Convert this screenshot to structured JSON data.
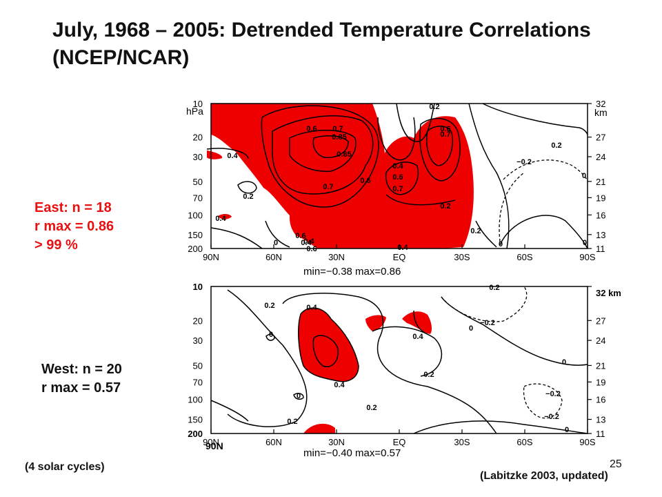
{
  "title": "July, 1968 – 2005: Detrended Temperature Correlations (NCEP/NCAR)",
  "annotations": {
    "east": [
      "East: n = 18",
      "r max = 0.86",
      "> 99 %"
    ],
    "west": [
      "West: n = 20",
      "r max = 0.57"
    ],
    "solar_cycles": "(4 solar cycles)",
    "citation": "(Labitzke  2003, updated)",
    "page_number": "25"
  },
  "colors": {
    "significant_fill": "#ee0000",
    "contour": "#000000",
    "east_text": "#e81010"
  },
  "chart_data": [
    {
      "type": "contour",
      "name": "East",
      "x_ticks": [
        "90N",
        "60N",
        "30N",
        "EQ",
        "30S",
        "60S",
        "90S"
      ],
      "y_left_ticks": [
        "10",
        "20",
        "30",
        "50",
        "70",
        "100",
        "150",
        "200"
      ],
      "y_left_unit": "hPa",
      "y_right_ticks": [
        "32",
        "27",
        "24",
        "21",
        "19",
        "16",
        "13",
        "11"
      ],
      "y_right_unit": "km",
      "min_max_label": "min=−0.38  max=0.86",
      "min": -0.38,
      "max": 0.86,
      "contour_labels": [
        "0.2",
        "0.2",
        "0.2",
        "0.4",
        "0.4",
        "0.6",
        "0.7",
        "0.85",
        "0.85",
        "0.6",
        "0.7",
        "0.4",
        "0.6",
        "0.7",
        "0.6",
        "0.7",
        "0.6",
        "0.4",
        "0.6",
        "0.4",
        "0.2",
        "0.2",
        "−0.2",
        "0",
        "0",
        "0",
        "0",
        "0.4"
      ],
      "shaded": "r > 0.4"
    },
    {
      "type": "contour",
      "name": "West",
      "x_ticks": [
        "90N",
        "60N",
        "30N",
        "EQ",
        "30S",
        "60S",
        "90S"
      ],
      "y_left_ticks": [
        "10",
        "20",
        "30",
        "50",
        "70",
        "100",
        "150",
        "200"
      ],
      "y_right_ticks": [
        "32 km",
        "27",
        "24",
        "21",
        "19",
        "16",
        "13",
        "11"
      ],
      "extra_labels": [
        "90N"
      ],
      "min_max_label": "min=−0.40  max=0.57",
      "min": -0.4,
      "max": 0.57,
      "contour_labels": [
        "0.2",
        "0.4",
        "0",
        "0.4",
        "0.4",
        "0.2",
        "−0.2",
        "0",
        "0.2",
        "0.2",
        "0.2",
        "0",
        "0",
        "−0.2",
        "−0.2",
        "0"
      ],
      "shaded": "r > 0.4"
    }
  ]
}
